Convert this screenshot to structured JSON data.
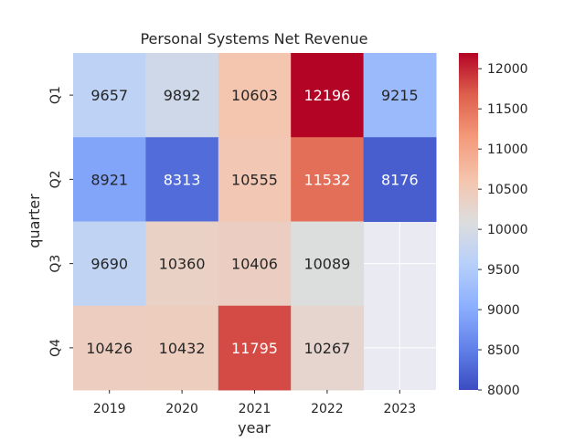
{
  "chart_data": {
    "type": "heatmap",
    "title": "Personal Systems Net Revenue",
    "xlabel": "year",
    "ylabel": "quarter",
    "x_categories": [
      "2019",
      "2020",
      "2021",
      "2022",
      "2023"
    ],
    "y_categories": [
      "Q1",
      "Q2",
      "Q3",
      "Q4"
    ],
    "values": [
      [
        9657,
        9892,
        10603,
        12196,
        9215
      ],
      [
        8921,
        8313,
        10555,
        11532,
        8176
      ],
      [
        9690,
        10360,
        10406,
        10089,
        null
      ],
      [
        10426,
        10432,
        11795,
        10267,
        null
      ]
    ],
    "colormap": "coolwarm",
    "value_range": [
      8000,
      12196
    ],
    "colorbar_ticks": [
      8000,
      8500,
      9000,
      9500,
      10000,
      10500,
      11000,
      11500,
      12000
    ],
    "missing_color": "#eaeaf2",
    "grid_color": "#ffffff",
    "text_dark": "#262626",
    "text_light": "#ffffff"
  }
}
